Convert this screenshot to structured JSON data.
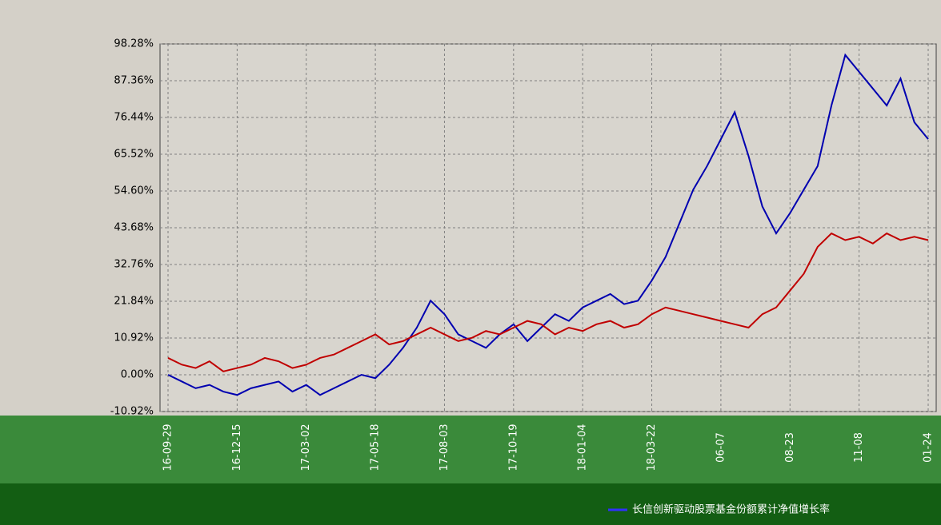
{
  "chart_data": {
    "type": "line",
    "categories": [
      "16-09-29",
      null,
      null,
      null,
      null,
      "16-12-15",
      null,
      null,
      null,
      null,
      "17-03-02",
      null,
      null,
      null,
      null,
      "17-05-18",
      null,
      null,
      null,
      null,
      "17-08-03",
      null,
      null,
      null,
      null,
      "17-10-19",
      null,
      null,
      null,
      null,
      "18-01-04",
      null,
      null,
      null,
      null,
      "18-03-22",
      null,
      null,
      null,
      null,
      "06-07",
      null,
      null,
      null,
      null,
      "08-23",
      null,
      null,
      null,
      null,
      "11-08",
      null,
      null,
      null,
      null,
      "01-24"
    ],
    "series": [
      {
        "name": "长信创新驱动股票基金份额累计净值增长率",
        "color": "#0000b0",
        "values": [
          0,
          -2,
          -4,
          -3,
          -5,
          -6,
          -4,
          -3,
          -2,
          -5,
          -3,
          -6,
          -4,
          -2,
          0,
          -1,
          3,
          8,
          14,
          22,
          18,
          12,
          10,
          8,
          12,
          15,
          10,
          14,
          18,
          16,
          20,
          22,
          24,
          21,
          22,
          28,
          35,
          45,
          55,
          62,
          70,
          78,
          65,
          50,
          42,
          48,
          55,
          62,
          80,
          95,
          90,
          85,
          80,
          88,
          75,
          70
        ]
      },
      {
        "name": null,
        "color": "#c00000",
        "values": [
          5,
          3,
          2,
          4,
          1,
          2,
          3,
          5,
          4,
          2,
          3,
          5,
          6,
          8,
          10,
          12,
          9,
          10,
          12,
          14,
          12,
          10,
          11,
          13,
          12,
          14,
          16,
          15,
          12,
          14,
          13,
          15,
          16,
          14,
          15,
          18,
          20,
          19,
          18,
          17,
          16,
          15,
          14,
          18,
          20,
          25,
          30,
          38,
          42,
          40,
          41,
          39,
          42,
          40,
          41,
          40
        ]
      }
    ],
    "ylim": [
      -10.92,
      98.28
    ],
    "yticks": [
      {
        "value": -10.92,
        "label": "-10.92%"
      },
      {
        "value": 0,
        "label": "0.00%"
      },
      {
        "value": 10.92,
        "label": "10.92%"
      },
      {
        "value": 21.84,
        "label": "21.84%"
      },
      {
        "value": 32.76,
        "label": "32.76%"
      },
      {
        "value": 43.68,
        "label": "43.68%"
      },
      {
        "value": 54.6,
        "label": "54.60%"
      },
      {
        "value": 65.52,
        "label": "65.52%"
      },
      {
        "value": 76.44,
        "label": "76.44%"
      },
      {
        "value": 87.36,
        "label": "87.36%"
      },
      {
        "value": 98.28,
        "label": "98.28%"
      }
    ],
    "grid": true
  }
}
